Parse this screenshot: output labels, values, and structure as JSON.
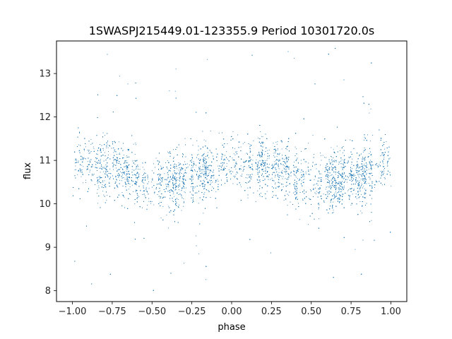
{
  "chart_data": {
    "type": "scatter",
    "title": "1SWASPJ215449.01-123355.9 Period 10301720.0s",
    "xlabel": "phase",
    "ylabel": "flux",
    "xlim": [
      -1.1,
      1.1
    ],
    "ylim": [
      7.75,
      13.75
    ],
    "x_ticks": [
      -1.0,
      -0.75,
      -0.5,
      -0.25,
      0.0,
      0.25,
      0.5,
      0.75,
      1.0
    ],
    "x_tick_labels": [
      "−1.00",
      "−0.75",
      "−0.50",
      "−0.25",
      "0.00",
      "0.25",
      "0.50",
      "0.75",
      "1.00"
    ],
    "y_ticks": [
      8,
      9,
      10,
      11,
      12,
      13
    ],
    "y_tick_labels": [
      "8",
      "9",
      "10",
      "11",
      "12",
      "13"
    ],
    "grid": false,
    "legend": false,
    "point_color": "#1f77b4",
    "series": [
      {
        "x_range": [
          -1.0,
          1.0
        ],
        "approx_points": 9000,
        "baseline_flux_profile": [
          {
            "phase": 0.0,
            "flux": 11.0
          },
          {
            "phase": 0.1,
            "flux": 10.95
          },
          {
            "phase": 0.2,
            "flux": 10.9
          },
          {
            "phase": 0.3,
            "flux": 10.8
          },
          {
            "phase": 0.4,
            "flux": 10.55
          },
          {
            "phase": 0.5,
            "flux": 10.5
          },
          {
            "phase": 0.6,
            "flux": 10.5
          },
          {
            "phase": 0.7,
            "flux": 10.6
          },
          {
            "phase": 0.8,
            "flux": 10.65
          },
          {
            "phase": 0.9,
            "flux": 10.8
          },
          {
            "phase": 1.0,
            "flux": 11.0
          }
        ],
        "typical_scatter": 0.45,
        "flux_extent": [
          8.0,
          13.6
        ]
      }
    ]
  }
}
